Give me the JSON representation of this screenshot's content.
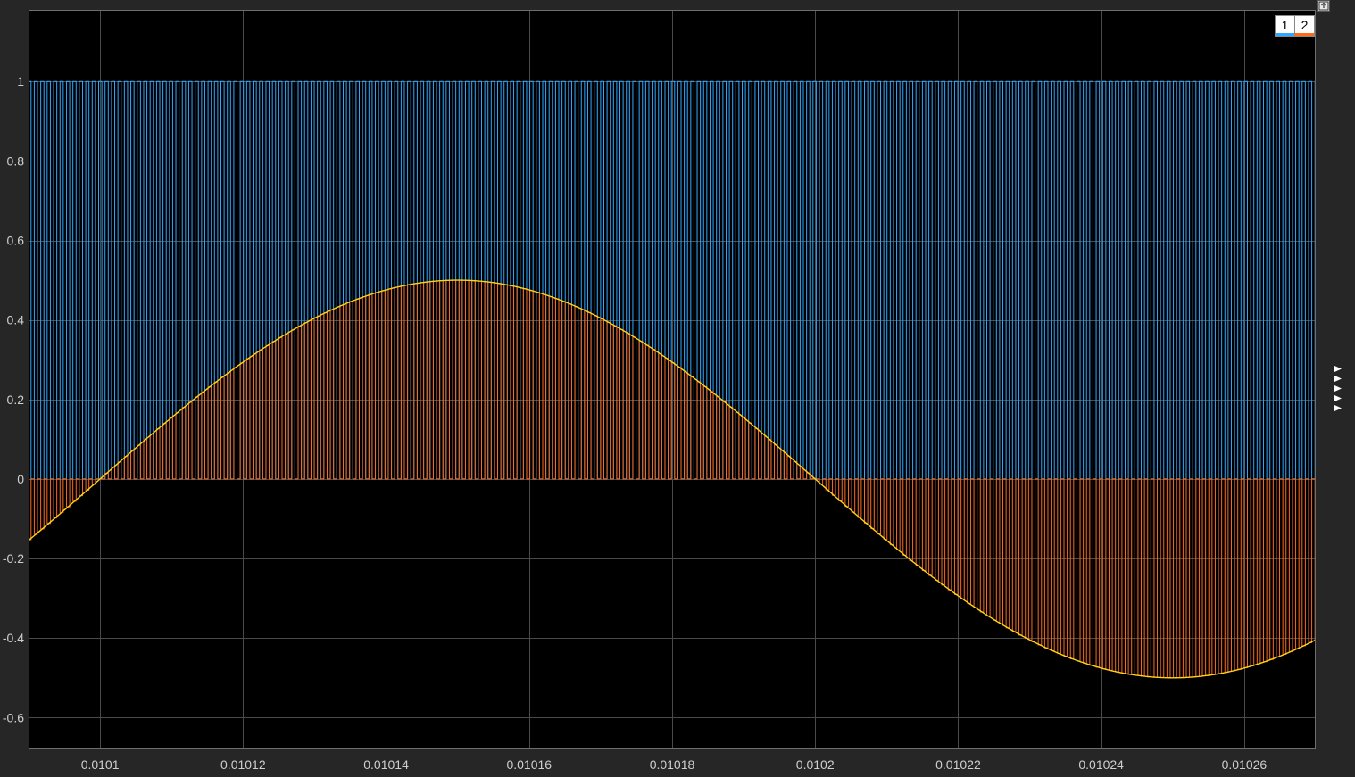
{
  "legend": {
    "entries": [
      {
        "label": "1",
        "color": "#2fa7ff"
      },
      {
        "label": "2",
        "color": "#ff6a1a"
      }
    ]
  },
  "icons": {
    "undock": "undock-icon",
    "side_arrows": "triangle-right-icon"
  },
  "chart_data": {
    "type": "line",
    "title": "",
    "xlabel": "",
    "ylabel": "",
    "xlim": [
      0.01009,
      0.01027
    ],
    "ylim": [
      -0.68,
      1.18
    ],
    "grid": true,
    "background": "#000000",
    "x_ticks": [
      0.0101,
      0.01012,
      0.01014,
      0.01016,
      0.01018,
      0.0102,
      0.01022,
      0.01024,
      0.01026
    ],
    "x_tick_labels": [
      "0.0101",
      "0.01012",
      "0.01014",
      "0.01016",
      "0.01018",
      "0.0102",
      "0.01022",
      "0.01024",
      "0.01026"
    ],
    "y_ticks": [
      1,
      0.8,
      0.6,
      0.4,
      0.2,
      0,
      -0.2,
      -0.4,
      -0.6
    ],
    "y_tick_labels": [
      "1",
      "0.8",
      "0.6",
      "0.4",
      "0.2",
      "0",
      "-0.2",
      "-0.4",
      "-0.6"
    ],
    "series": [
      {
        "name": "1",
        "kind": "pulse-train",
        "color": "#2fa7ff",
        "low": 0,
        "high": 1,
        "period": 9e-07,
        "duty": 0.5
      },
      {
        "name": "2",
        "kind": "pwm-sampled-sine",
        "color": "#ff6a1a",
        "period": 9e-07,
        "duty": 0.5
      },
      {
        "name": "2",
        "kind": "sine",
        "color": "#ffd21a",
        "amplitude": 0.5,
        "frequency": 5000,
        "phase_reference_zero": 0.0101
      }
    ]
  }
}
